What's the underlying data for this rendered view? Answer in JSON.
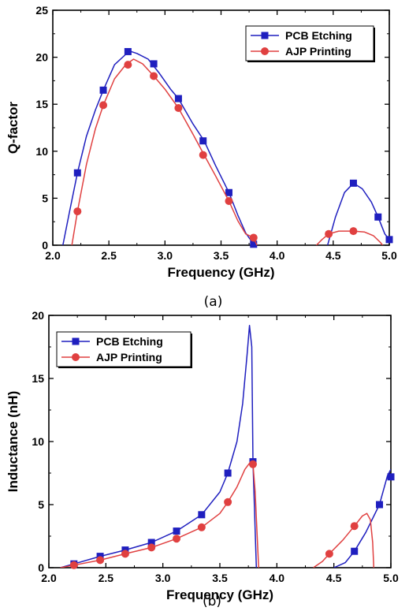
{
  "colors": {
    "pcb": "#1f1fbf",
    "ajp": "#e04040",
    "axis": "#000000"
  },
  "chart_data": [
    {
      "type": "line",
      "xlabel": "Frequency  (GHz)",
      "ylabel": "Q-factor",
      "caption": "(a)",
      "xlim": [
        2.0,
        5.0
      ],
      "ylim": [
        0,
        25
      ],
      "xticks": [
        "2.0",
        "2.5",
        "3.0",
        "3.5",
        "4.0",
        "4.5",
        "5.0"
      ],
      "yticks": [
        "0",
        "5",
        "10",
        "15",
        "20",
        "25"
      ],
      "legend": "top-right",
      "series": [
        {
          "name": "PCB Etching",
          "marker": "square",
          "curve": [
            [
              2.09,
              0
            ],
            [
              2.15,
              3.6
            ],
            [
              2.22,
              7.7
            ],
            [
              2.3,
              11.6
            ],
            [
              2.38,
              14.4
            ],
            [
              2.45,
              16.5
            ],
            [
              2.55,
              19.2
            ],
            [
              2.65,
              20.3
            ],
            [
              2.7,
              20.6
            ],
            [
              2.75,
              20.4
            ],
            [
              2.85,
              19.8
            ],
            [
              2.95,
              18.3
            ],
            [
              3.05,
              16.6
            ],
            [
              3.12,
              15.6
            ],
            [
              3.25,
              12.9
            ],
            [
              3.35,
              11.1
            ],
            [
              3.45,
              8.5
            ],
            [
              3.57,
              5.6
            ],
            [
              3.65,
              3.2
            ],
            [
              3.72,
              1.3
            ],
            [
              3.79,
              0.1
            ],
            [
              3.8,
              0
            ]
          ],
          "curve2": [
            [
              4.45,
              0
            ],
            [
              4.52,
              3.0
            ],
            [
              4.6,
              5.6
            ],
            [
              4.68,
              6.6
            ],
            [
              4.76,
              6.0
            ],
            [
              4.84,
              4.6
            ],
            [
              4.9,
              3.0
            ],
            [
              4.96,
              1.2
            ],
            [
              5.0,
              0.6
            ]
          ],
          "points": [
            [
              2.22,
              7.7
            ],
            [
              2.45,
              16.5
            ],
            [
              2.67,
              20.6
            ],
            [
              2.9,
              19.3
            ],
            [
              3.12,
              15.6
            ],
            [
              3.34,
              11.1
            ],
            [
              3.57,
              5.6
            ],
            [
              3.79,
              0.1
            ],
            [
              4.68,
              6.6
            ],
            [
              4.9,
              3.0
            ],
            [
              5.0,
              0.6
            ]
          ]
        },
        {
          "name": "AJP Printing",
          "marker": "circle",
          "curve": [
            [
              2.17,
              0
            ],
            [
              2.22,
              3.6
            ],
            [
              2.3,
              8.6
            ],
            [
              2.38,
              12.4
            ],
            [
              2.45,
              14.9
            ],
            [
              2.55,
              17.7
            ],
            [
              2.65,
              19.2
            ],
            [
              2.72,
              19.8
            ],
            [
              2.8,
              19.3
            ],
            [
              2.9,
              18.0
            ],
            [
              3.0,
              16.6
            ],
            [
              3.12,
              14.6
            ],
            [
              3.25,
              11.8
            ],
            [
              3.35,
              9.6
            ],
            [
              3.45,
              7.4
            ],
            [
              3.57,
              4.7
            ],
            [
              3.65,
              2.6
            ],
            [
              3.72,
              1.2
            ],
            [
              3.79,
              0.8
            ],
            [
              3.82,
              0
            ]
          ],
          "curve2": [
            [
              4.35,
              0
            ],
            [
              4.4,
              0.6
            ],
            [
              4.46,
              1.2
            ],
            [
              4.55,
              1.5
            ],
            [
              4.68,
              1.5
            ],
            [
              4.78,
              1.4
            ],
            [
              4.86,
              1.0
            ],
            [
              4.92,
              0.3
            ],
            [
              4.94,
              0
            ]
          ],
          "points": [
            [
              2.22,
              3.6
            ],
            [
              2.45,
              14.9
            ],
            [
              2.67,
              19.2
            ],
            [
              2.9,
              18.0
            ],
            [
              3.12,
              14.6
            ],
            [
              3.34,
              9.6
            ],
            [
              3.57,
              4.7
            ],
            [
              3.79,
              0.8
            ],
            [
              4.46,
              1.2
            ],
            [
              4.68,
              1.5
            ]
          ]
        }
      ]
    },
    {
      "type": "line",
      "xlabel": "Frequency  (GHz)",
      "ylabel": "Inductance  (nH)",
      "caption": "(b)",
      "xlim": [
        2.0,
        5.0
      ],
      "ylim": [
        0,
        20
      ],
      "xticks": [
        "2.0",
        "2.5",
        "3.0",
        "3.5",
        "4.0",
        "4.5",
        "5.0"
      ],
      "yticks": [
        "0",
        "5",
        "10",
        "15",
        "20"
      ],
      "legend": "top-left",
      "series": [
        {
          "name": "PCB Etching",
          "marker": "square",
          "curve": [
            [
              2.1,
              0
            ],
            [
              2.22,
              0.3
            ],
            [
              2.45,
              0.9
            ],
            [
              2.67,
              1.4
            ],
            [
              2.9,
              2.0
            ],
            [
              3.12,
              2.9
            ],
            [
              3.34,
              4.2
            ],
            [
              3.5,
              6.0
            ],
            [
              3.57,
              7.5
            ],
            [
              3.65,
              10.0
            ],
            [
              3.7,
              13.0
            ],
            [
              3.74,
              17.0
            ],
            [
              3.76,
              19.2
            ],
            [
              3.78,
              17.5
            ],
            [
              3.79,
              8.4
            ],
            [
              3.82,
              0
            ]
          ],
          "curve2": [
            [
              4.5,
              0
            ],
            [
              4.6,
              0.4
            ],
            [
              4.68,
              1.3
            ],
            [
              4.78,
              2.8
            ],
            [
              4.9,
              5.0
            ],
            [
              4.97,
              7.3
            ],
            [
              5.0,
              7.8
            ]
          ],
          "points": [
            [
              2.22,
              0.3
            ],
            [
              2.45,
              0.9
            ],
            [
              2.67,
              1.4
            ],
            [
              2.9,
              2.0
            ],
            [
              3.12,
              2.9
            ],
            [
              3.34,
              4.2
            ],
            [
              3.57,
              7.5
            ],
            [
              3.79,
              8.4
            ],
            [
              4.68,
              1.3
            ],
            [
              4.9,
              5.0
            ],
            [
              5.0,
              7.2
            ]
          ]
        },
        {
          "name": "AJP Printing",
          "marker": "circle",
          "curve": [
            [
              2.1,
              0
            ],
            [
              2.22,
              0.2
            ],
            [
              2.45,
              0.6
            ],
            [
              2.67,
              1.1
            ],
            [
              2.9,
              1.6
            ],
            [
              3.12,
              2.3
            ],
            [
              3.34,
              3.2
            ],
            [
              3.5,
              4.3
            ],
            [
              3.57,
              5.2
            ],
            [
              3.65,
              6.4
            ],
            [
              3.72,
              7.8
            ],
            [
              3.77,
              8.4
            ],
            [
              3.79,
              8.2
            ],
            [
              3.81,
              6.0
            ],
            [
              3.84,
              0
            ]
          ],
          "curve2": [
            [
              4.32,
              0
            ],
            [
              4.4,
              0.5
            ],
            [
              4.46,
              1.1
            ],
            [
              4.58,
              2.2
            ],
            [
              4.68,
              3.3
            ],
            [
              4.75,
              4.1
            ],
            [
              4.79,
              4.3
            ],
            [
              4.82,
              3.8
            ],
            [
              4.84,
              2.0
            ],
            [
              4.85,
              0
            ]
          ],
          "points": [
            [
              2.22,
              0.2
            ],
            [
              2.45,
              0.6
            ],
            [
              2.67,
              1.1
            ],
            [
              2.9,
              1.6
            ],
            [
              3.12,
              2.3
            ],
            [
              3.34,
              3.2
            ],
            [
              3.57,
              5.2
            ],
            [
              3.79,
              8.2
            ],
            [
              4.46,
              1.1
            ],
            [
              4.68,
              3.3
            ]
          ]
        }
      ]
    }
  ]
}
